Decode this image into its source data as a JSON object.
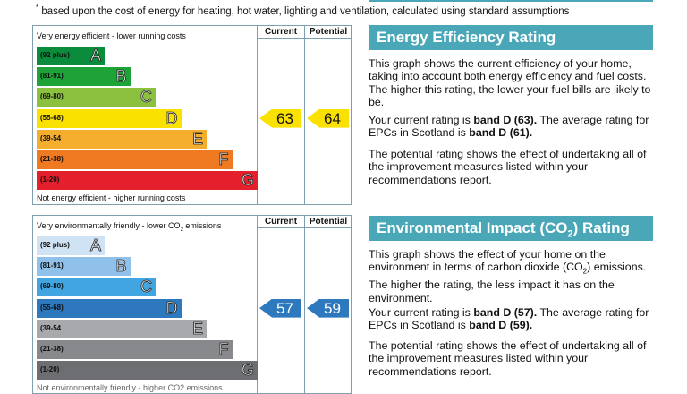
{
  "footnote": {
    "mark": "*",
    "text": "based upon the cost of energy for heating, hot water, lighting and ventilation, calculated using standard assumptions"
  },
  "energy_chart": {
    "top_label": "Very energy efficient - lower running costs",
    "bottom_label": "Not energy efficient - higher running costs",
    "col_current": "Current",
    "col_potential": "Potential",
    "bands": [
      {
        "range": "(92 plus)",
        "letter": "A",
        "color": "#0a8c3c"
      },
      {
        "range": "(81-91)",
        "letter": "B",
        "color": "#1da337"
      },
      {
        "range": "(69-80)",
        "letter": "C",
        "color": "#8cc13f"
      },
      {
        "range": "(55-68)",
        "letter": "D",
        "color": "#fbe100"
      },
      {
        "range": "(39-54",
        "letter": "E",
        "color": "#f4ad2d"
      },
      {
        "range": "(21-38)",
        "letter": "F",
        "color": "#ef7a22"
      },
      {
        "range": "(1-20)",
        "letter": "G",
        "color": "#e4202c"
      }
    ],
    "current": {
      "value": "63",
      "band_index": 3,
      "color": "#fbe100"
    },
    "potential": {
      "value": "64",
      "band_index": 3,
      "color": "#fbe100"
    }
  },
  "env_chart": {
    "top_label_main": "Very environmentally friendly - lower CO",
    "top_label_sub": "2",
    "top_label_end": " emissions",
    "bottom_label": "Not environmentally friendly - higher CO2 emissions",
    "col_current": "Current",
    "col_potential": "Potential",
    "bands": [
      {
        "range": "(92 plus)",
        "letter": "A",
        "color": "#cfe3f5"
      },
      {
        "range": "(81-91)",
        "letter": "B",
        "color": "#8fc1ea"
      },
      {
        "range": "(69-80)",
        "letter": "C",
        "color": "#41a5e2"
      },
      {
        "range": "(55-68)",
        "letter": "D",
        "color": "#2e79bd"
      },
      {
        "range": "(39-54",
        "letter": "E",
        "color": "#a7a9ac"
      },
      {
        "range": "(21-38)",
        "letter": "F",
        "color": "#88898c"
      },
      {
        "range": "(1-20)",
        "letter": "G",
        "color": "#6d6e71"
      }
    ],
    "current": {
      "value": "57",
      "band_index": 3,
      "color": "#2e79bd"
    },
    "potential": {
      "value": "59",
      "band_index": 3,
      "color": "#2e79bd"
    }
  },
  "energy_panel": {
    "title": "Energy Efficiency Rating",
    "para1": "This graph shows the current efficiency of your home, taking into account both energy efficiency and fuel costs. The higher this rating, the lower your fuel bills are likely to be.",
    "para2_a": "Your current rating is ",
    "para2_b": "band D (63).",
    "para2_c": " The average rating for EPCs in Scotland is ",
    "para2_d": "band D (61).",
    "para3": "The potential rating shows the effect of undertaking all of the improvement measures listed within your recommendations report."
  },
  "env_panel": {
    "title_a": "Environmental Impact (CO",
    "title_sub": "2",
    "title_b": ") Rating",
    "para1_a": "This graph shows the effect of your home on the environment in terms of carbon dioxide (CO",
    "para1_sub": "2",
    "para1_b": ") emissions. The higher the rating, the less impact it has on the environment.",
    "para2_a": "Your current rating is ",
    "para2_b": "band D (57).",
    "para2_c": " The average rating for EPCs in Scotland is ",
    "para2_d": "band D (59).",
    "para3": "The potential rating shows the effect of undertaking all of the improvement measures listed within your recommendations report."
  }
}
